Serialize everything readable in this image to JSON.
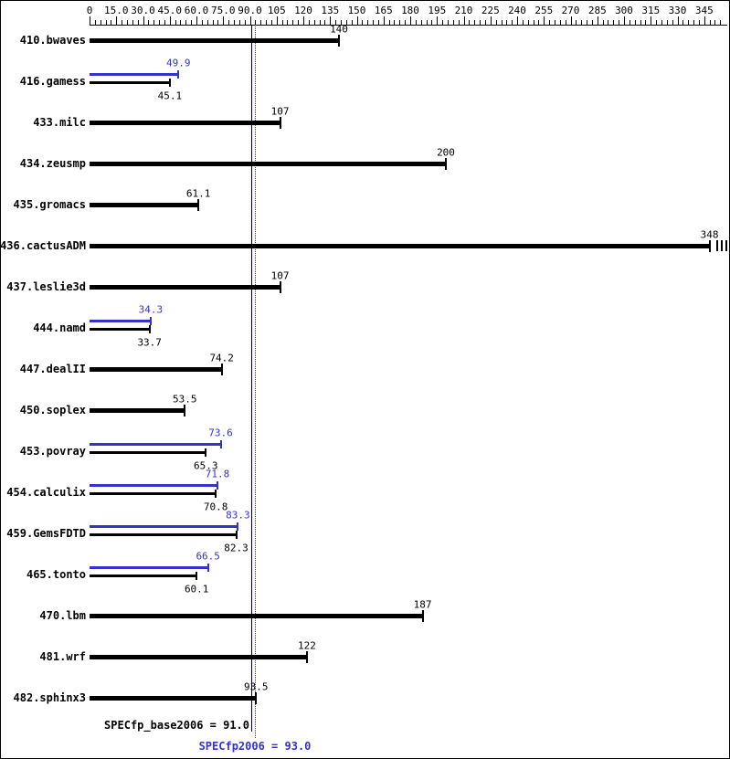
{
  "colors": {
    "base": "#000000",
    "peak": "#3333cc",
    "background": "#ffffff"
  },
  "summary": {
    "base_label": "SPECfp_base2006 = 91.0",
    "peak_label": "SPECfp2006 = 93.0"
  },
  "chart_data": {
    "type": "bar",
    "orientation": "horizontal",
    "title": "",
    "xlabel": "",
    "ylabel": "",
    "axis": {
      "min": 0,
      "max": 354,
      "major_step": 15,
      "minor_step": 3,
      "tick_values": [
        0,
        15,
        30,
        45,
        60,
        75,
        90,
        105,
        120,
        135,
        150,
        165,
        180,
        195,
        210,
        225,
        240,
        255,
        270,
        285,
        300,
        315,
        330,
        345
      ],
      "tick_labels": [
        "0",
        "15.0",
        "30.0",
        "45.0",
        "60.0",
        "75.0",
        "90.0",
        "105",
        "120",
        "135",
        "150",
        "165",
        "180",
        "195",
        "210",
        "225",
        "240",
        "255",
        "270",
        "285",
        "300",
        "315",
        "330",
        "345"
      ]
    },
    "reference_lines": {
      "base": {
        "value": 91.0,
        "style": "solid",
        "color": "#000000",
        "label": "SPECfp_base2006 = 91.0"
      },
      "peak": {
        "value": 93.0,
        "style": "dotted",
        "color": "#3333cc",
        "label": "SPECfp2006 = 93.0"
      }
    },
    "benchmarks": [
      {
        "name": "410.bwaves",
        "base": {
          "value": 140,
          "label": "140"
        },
        "peak": null
      },
      {
        "name": "416.gamess",
        "base": {
          "value": 45.1,
          "label": "45.1"
        },
        "peak": {
          "value": 49.9,
          "label": "49.9"
        }
      },
      {
        "name": "433.milc",
        "base": {
          "value": 107,
          "label": "107"
        },
        "peak": null
      },
      {
        "name": "434.zeusmp",
        "base": {
          "value": 200,
          "label": "200"
        },
        "peak": null
      },
      {
        "name": "435.gromacs",
        "base": {
          "value": 61.1,
          "label": "61.1"
        },
        "peak": null
      },
      {
        "name": "436.cactusADM",
        "base": {
          "value": 348,
          "label": "348",
          "clipped": true
        },
        "peak": null
      },
      {
        "name": "437.leslie3d",
        "base": {
          "value": 107,
          "label": "107"
        },
        "peak": null
      },
      {
        "name": "444.namd",
        "base": {
          "value": 33.7,
          "label": "33.7"
        },
        "peak": {
          "value": 34.3,
          "label": "34.3"
        }
      },
      {
        "name": "447.dealII",
        "base": {
          "value": 74.2,
          "label": "74.2"
        },
        "peak": null
      },
      {
        "name": "450.soplex",
        "base": {
          "value": 53.5,
          "label": "53.5"
        },
        "peak": null
      },
      {
        "name": "453.povray",
        "base": {
          "value": 65.3,
          "label": "65.3"
        },
        "peak": {
          "value": 73.6,
          "label": "73.6"
        }
      },
      {
        "name": "454.calculix",
        "base": {
          "value": 70.8,
          "label": "70.8"
        },
        "peak": {
          "value": 71.8,
          "label": "71.8"
        }
      },
      {
        "name": "459.GemsFDTD",
        "base": {
          "value": 82.3,
          "label": "82.3"
        },
        "peak": {
          "value": 83.3,
          "label": "83.3"
        }
      },
      {
        "name": "465.tonto",
        "base": {
          "value": 60.1,
          "label": "60.1"
        },
        "peak": {
          "value": 66.5,
          "label": "66.5"
        }
      },
      {
        "name": "470.lbm",
        "base": {
          "value": 187,
          "label": "187"
        },
        "peak": null
      },
      {
        "name": "481.wrf",
        "base": {
          "value": 122,
          "label": "122"
        },
        "peak": null
      },
      {
        "name": "482.sphinx3",
        "base": {
          "value": 93.5,
          "label": "93.5"
        },
        "peak": null
      }
    ]
  }
}
